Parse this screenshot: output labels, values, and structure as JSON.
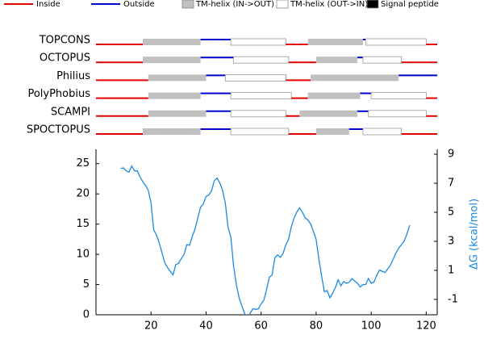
{
  "chart_data": [
    {
      "type": "topology",
      "xlim": [
        0,
        124
      ],
      "legend": [
        {
          "name": "Inside",
          "color": "#e00000"
        },
        {
          "name": "Outside",
          "color": "#0000d0"
        },
        {
          "name": "TM-helix (IN->OUT)",
          "color": "#c0c0c0"
        },
        {
          "name": "TM-helix (OUT->IN)",
          "color": "#ffffff"
        },
        {
          "name": "Signal peptide",
          "color": "#000000"
        }
      ],
      "tracks": [
        {
          "name": "TOPCONS",
          "segments": [
            [
              0,
              17,
              0
            ],
            [
              17,
              38,
              2
            ],
            [
              38,
              49,
              1
            ],
            [
              49,
              69,
              3
            ],
            [
              69,
              77,
              0
            ],
            [
              77,
              97,
              2
            ],
            [
              97,
              98,
              1
            ],
            [
              98,
              120,
              3
            ],
            [
              120,
              124,
              0
            ]
          ]
        },
        {
          "name": "OCTOPUS",
          "segments": [
            [
              0,
              17,
              0
            ],
            [
              17,
              38,
              2
            ],
            [
              38,
              50,
              1
            ],
            [
              50,
              70,
              3
            ],
            [
              70,
              80,
              0
            ],
            [
              80,
              95,
              2
            ],
            [
              95,
              97,
              1
            ],
            [
              97,
              111,
              3
            ],
            [
              111,
              124,
              0
            ]
          ]
        },
        {
          "name": "Philius",
          "segments": [
            [
              0,
              19,
              0
            ],
            [
              19,
              40,
              2
            ],
            [
              40,
              47,
              1
            ],
            [
              47,
              69,
              3
            ],
            [
              69,
              78,
              0
            ],
            [
              78,
              110,
              2
            ],
            [
              110,
              124,
              1
            ]
          ]
        },
        {
          "name": "PolyPhobius",
          "segments": [
            [
              0,
              19,
              0
            ],
            [
              19,
              38,
              2
            ],
            [
              38,
              49,
              1
            ],
            [
              49,
              71,
              3
            ],
            [
              71,
              77,
              0
            ],
            [
              77,
              96,
              2
            ],
            [
              96,
              100,
              1
            ],
            [
              100,
              120,
              3
            ],
            [
              120,
              124,
              0
            ]
          ]
        },
        {
          "name": "SCAMPI",
          "segments": [
            [
              0,
              19,
              0
            ],
            [
              19,
              40,
              2
            ],
            [
              40,
              49,
              1
            ],
            [
              49,
              69,
              3
            ],
            [
              69,
              74,
              0
            ],
            [
              74,
              95,
              2
            ],
            [
              95,
              99,
              1
            ],
            [
              99,
              120,
              3
            ],
            [
              120,
              124,
              0
            ]
          ]
        },
        {
          "name": "SPOCTOPUS",
          "segments": [
            [
              0,
              17,
              0
            ],
            [
              17,
              38,
              2
            ],
            [
              38,
              49,
              1
            ],
            [
              49,
              70,
              3
            ],
            [
              70,
              80,
              0
            ],
            [
              80,
              92,
              2
            ],
            [
              92,
              97,
              1
            ],
            [
              97,
              111,
              3
            ],
            [
              111,
              124,
              0
            ]
          ]
        }
      ]
    },
    {
      "type": "line",
      "color": "#1a8ae6",
      "xlim": [
        0,
        124
      ],
      "xticks": [
        20,
        40,
        60,
        80,
        100,
        120
      ],
      "ylim": [
        0,
        26.7
      ],
      "yticks": [
        0,
        5,
        10,
        15,
        20,
        25
      ],
      "y2lim": [
        -2.06,
        9.06
      ],
      "y2ticks": [
        -1,
        1,
        3,
        5,
        7,
        9
      ],
      "y2label": "ΔG (kcal/mol)",
      "x": [
        9,
        10,
        11,
        12,
        13,
        14,
        15,
        16,
        17,
        18,
        19,
        20,
        21,
        22,
        23,
        24,
        25,
        26,
        27,
        28,
        29,
        30,
        31,
        32,
        33,
        34,
        35,
        36,
        37,
        38,
        39,
        40,
        41,
        42,
        43,
        44,
        45,
        46,
        47,
        48,
        49,
        50,
        51,
        52,
        53,
        54,
        55,
        56,
        57,
        58,
        59,
        60,
        61,
        62,
        63,
        64,
        65,
        66,
        67,
        68,
        69,
        70,
        71,
        72,
        73,
        74,
        75,
        76,
        77,
        78,
        79,
        80,
        81,
        82,
        83,
        84,
        85,
        86,
        87,
        88,
        89,
        90,
        91,
        92,
        93,
        94,
        95,
        96,
        97,
        98,
        99,
        100,
        101,
        102,
        103,
        104,
        105,
        106,
        107,
        108,
        109,
        110,
        111,
        112,
        113,
        114
      ],
      "values": [
        24.2,
        24.3,
        23.8,
        23.6,
        24.6,
        23.8,
        23.8,
        22.8,
        22.0,
        21.4,
        20.6,
        18.5,
        14.0,
        13.2,
        11.8,
        10.2,
        8.6,
        7.8,
        7.2,
        6.6,
        8.3,
        8.5,
        9.3,
        10.0,
        11.6,
        11.5,
        13.0,
        14.2,
        16.0,
        17.8,
        18.3,
        19.6,
        19.8,
        20.5,
        22.2,
        22.6,
        21.8,
        20.6,
        18.5,
        14.5,
        12.8,
        8.0,
        5.0,
        2.8,
        1.5,
        0.2,
        -0.6,
        0.2,
        1.0,
        0.9,
        1.0,
        1.8,
        2.4,
        4.2,
        6.2,
        6.6,
        9.4,
        9.9,
        9.5,
        10.2,
        11.6,
        12.5,
        14.6,
        16.0,
        17.0,
        17.7,
        17.0,
        16.0,
        15.7,
        15.0,
        13.8,
        12.5,
        9.2,
        6.4,
        3.8,
        4.0,
        2.8,
        3.6,
        4.5,
        5.8,
        4.8,
        5.5,
        5.2,
        5.4,
        6.0,
        5.6,
        5.2,
        4.6,
        5.0,
        5.0,
        6.0,
        5.2,
        5.4,
        6.5,
        7.4,
        7.2,
        7.0,
        7.6,
        8.2,
        9.2,
        10.2,
        11.0,
        11.6,
        12.2,
        13.4,
        14.8
      ]
    }
  ]
}
